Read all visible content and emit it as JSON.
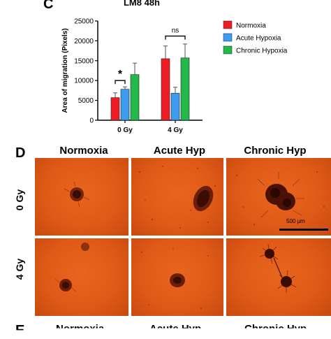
{
  "panel_c": {
    "letter": "C",
    "title": "LM8 48h"
  },
  "panel_d": {
    "letter": "D",
    "columns": [
      "Normoxia",
      "Acute Hyp",
      "Chronic Hyp"
    ],
    "rows": [
      "0 Gy",
      "4 Gy"
    ],
    "scale_bar_label": "500 μm"
  },
  "panel_e": {
    "letter": "E",
    "columns": [
      "Normoxia",
      "Acute Hyp",
      "Chronic Hyp"
    ]
  },
  "chart_data": {
    "type": "bar",
    "title": "LM8 48h",
    "categories": [
      "0 Gy",
      "4 Gy"
    ],
    "series": [
      {
        "name": "Normoxia",
        "color": "#ee1c24",
        "values": [
          5700,
          15500
        ],
        "errors": [
          1200,
          3200
        ]
      },
      {
        "name": "Acute Hypoxia",
        "color": "#3d9bf0",
        "values": [
          7800,
          6800
        ],
        "errors": [
          600,
          1500
        ]
      },
      {
        "name": "Chronic Hypoxia",
        "color": "#22b84a",
        "values": [
          11500,
          15700
        ],
        "errors": [
          2900,
          3500
        ]
      }
    ],
    "ylabel": "Area of migration (Pixels)",
    "xlabel": "",
    "ylim": [
      0,
      25000
    ],
    "yticks": [
      0,
      5000,
      10000,
      15000,
      20000,
      25000
    ],
    "annotations": [
      "*",
      "ns"
    ],
    "legend_position": "right"
  }
}
